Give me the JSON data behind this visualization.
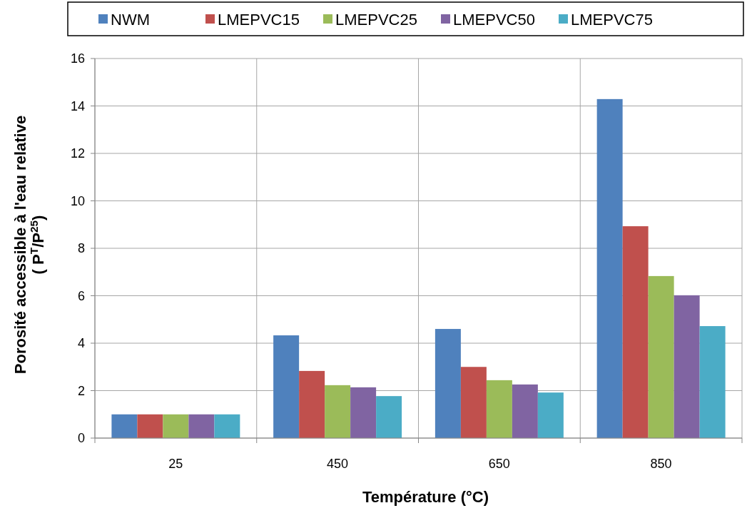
{
  "chart_data": {
    "type": "bar",
    "xlabel": "Température (°C)",
    "ylabel": "Porosité accessible  à  l'eau relative\n( P$^{T}$/P$^{25}$)",
    "categories": [
      "25",
      "450",
      "650",
      "850"
    ],
    "series": [
      {
        "name": "NWM",
        "color": "#4f81bd",
        "values": [
          1,
          4.33,
          4.6,
          14.29
        ]
      },
      {
        "name": "LMEPVC15",
        "color": "#c0504d",
        "values": [
          1,
          2.83,
          3.0,
          8.93
        ]
      },
      {
        "name": "LMEPVC25",
        "color": "#9bbb59",
        "values": [
          1,
          2.23,
          2.44,
          6.83
        ]
      },
      {
        "name": "LMEPVC50",
        "color": "#8064a2",
        "values": [
          1,
          2.14,
          2.26,
          6.02
        ]
      },
      {
        "name": "LMEPVC75",
        "color": "#4bacc6",
        "values": [
          1,
          1.77,
          1.92,
          4.72
        ]
      }
    ],
    "ylim": [
      0,
      16
    ],
    "yticks": [
      0,
      2,
      4,
      6,
      8,
      10,
      12,
      14,
      16
    ],
    "grid": true,
    "legend": "top"
  }
}
